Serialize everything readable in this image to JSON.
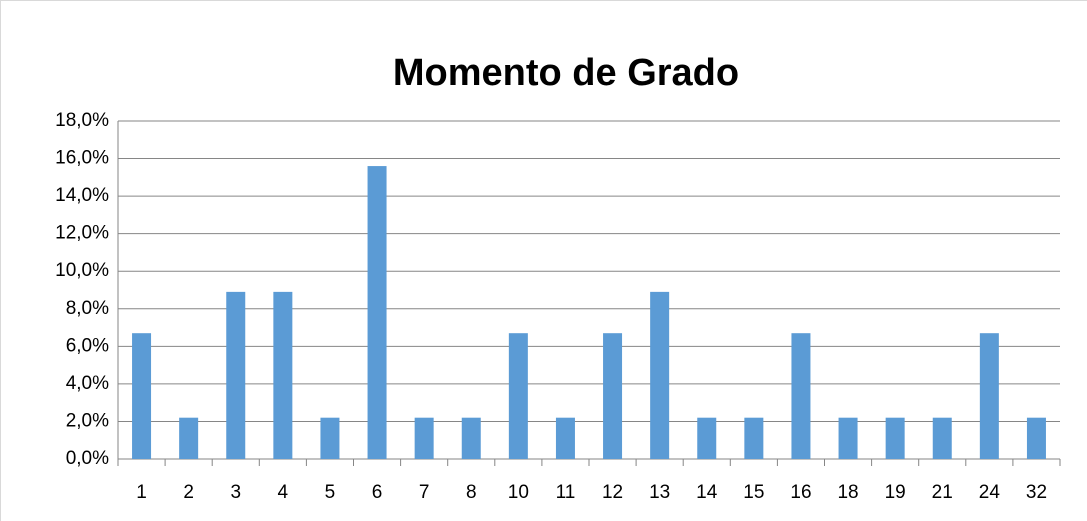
{
  "chart_data": {
    "type": "bar",
    "title": "Momento de Grado",
    "categories": [
      "1",
      "2",
      "3",
      "4",
      "5",
      "6",
      "7",
      "8",
      "10",
      "11",
      "12",
      "13",
      "14",
      "15",
      "16",
      "18",
      "19",
      "21",
      "24",
      "32"
    ],
    "values": [
      6.7,
      2.2,
      8.9,
      8.9,
      2.2,
      15.6,
      2.2,
      2.2,
      6.7,
      2.2,
      6.7,
      8.9,
      2.2,
      2.2,
      6.7,
      2.2,
      2.2,
      2.2,
      6.7,
      2.2
    ],
    "color": "#5b9bd5",
    "ylim": [
      0,
      18
    ],
    "yticks": [
      {
        "value": 0,
        "label": "0,0%"
      },
      {
        "value": 2,
        "label": "2,0%"
      },
      {
        "value": 4,
        "label": "4,0%"
      },
      {
        "value": 6,
        "label": "6,0%"
      },
      {
        "value": 8,
        "label": "8,0%"
      },
      {
        "value": 10,
        "label": "10,0%"
      },
      {
        "value": 12,
        "label": "12,0%"
      },
      {
        "value": 14,
        "label": "14,0%"
      },
      {
        "value": 16,
        "label": "16,0%"
      },
      {
        "value": 18,
        "label": "18,0%"
      }
    ],
    "grid": true
  }
}
